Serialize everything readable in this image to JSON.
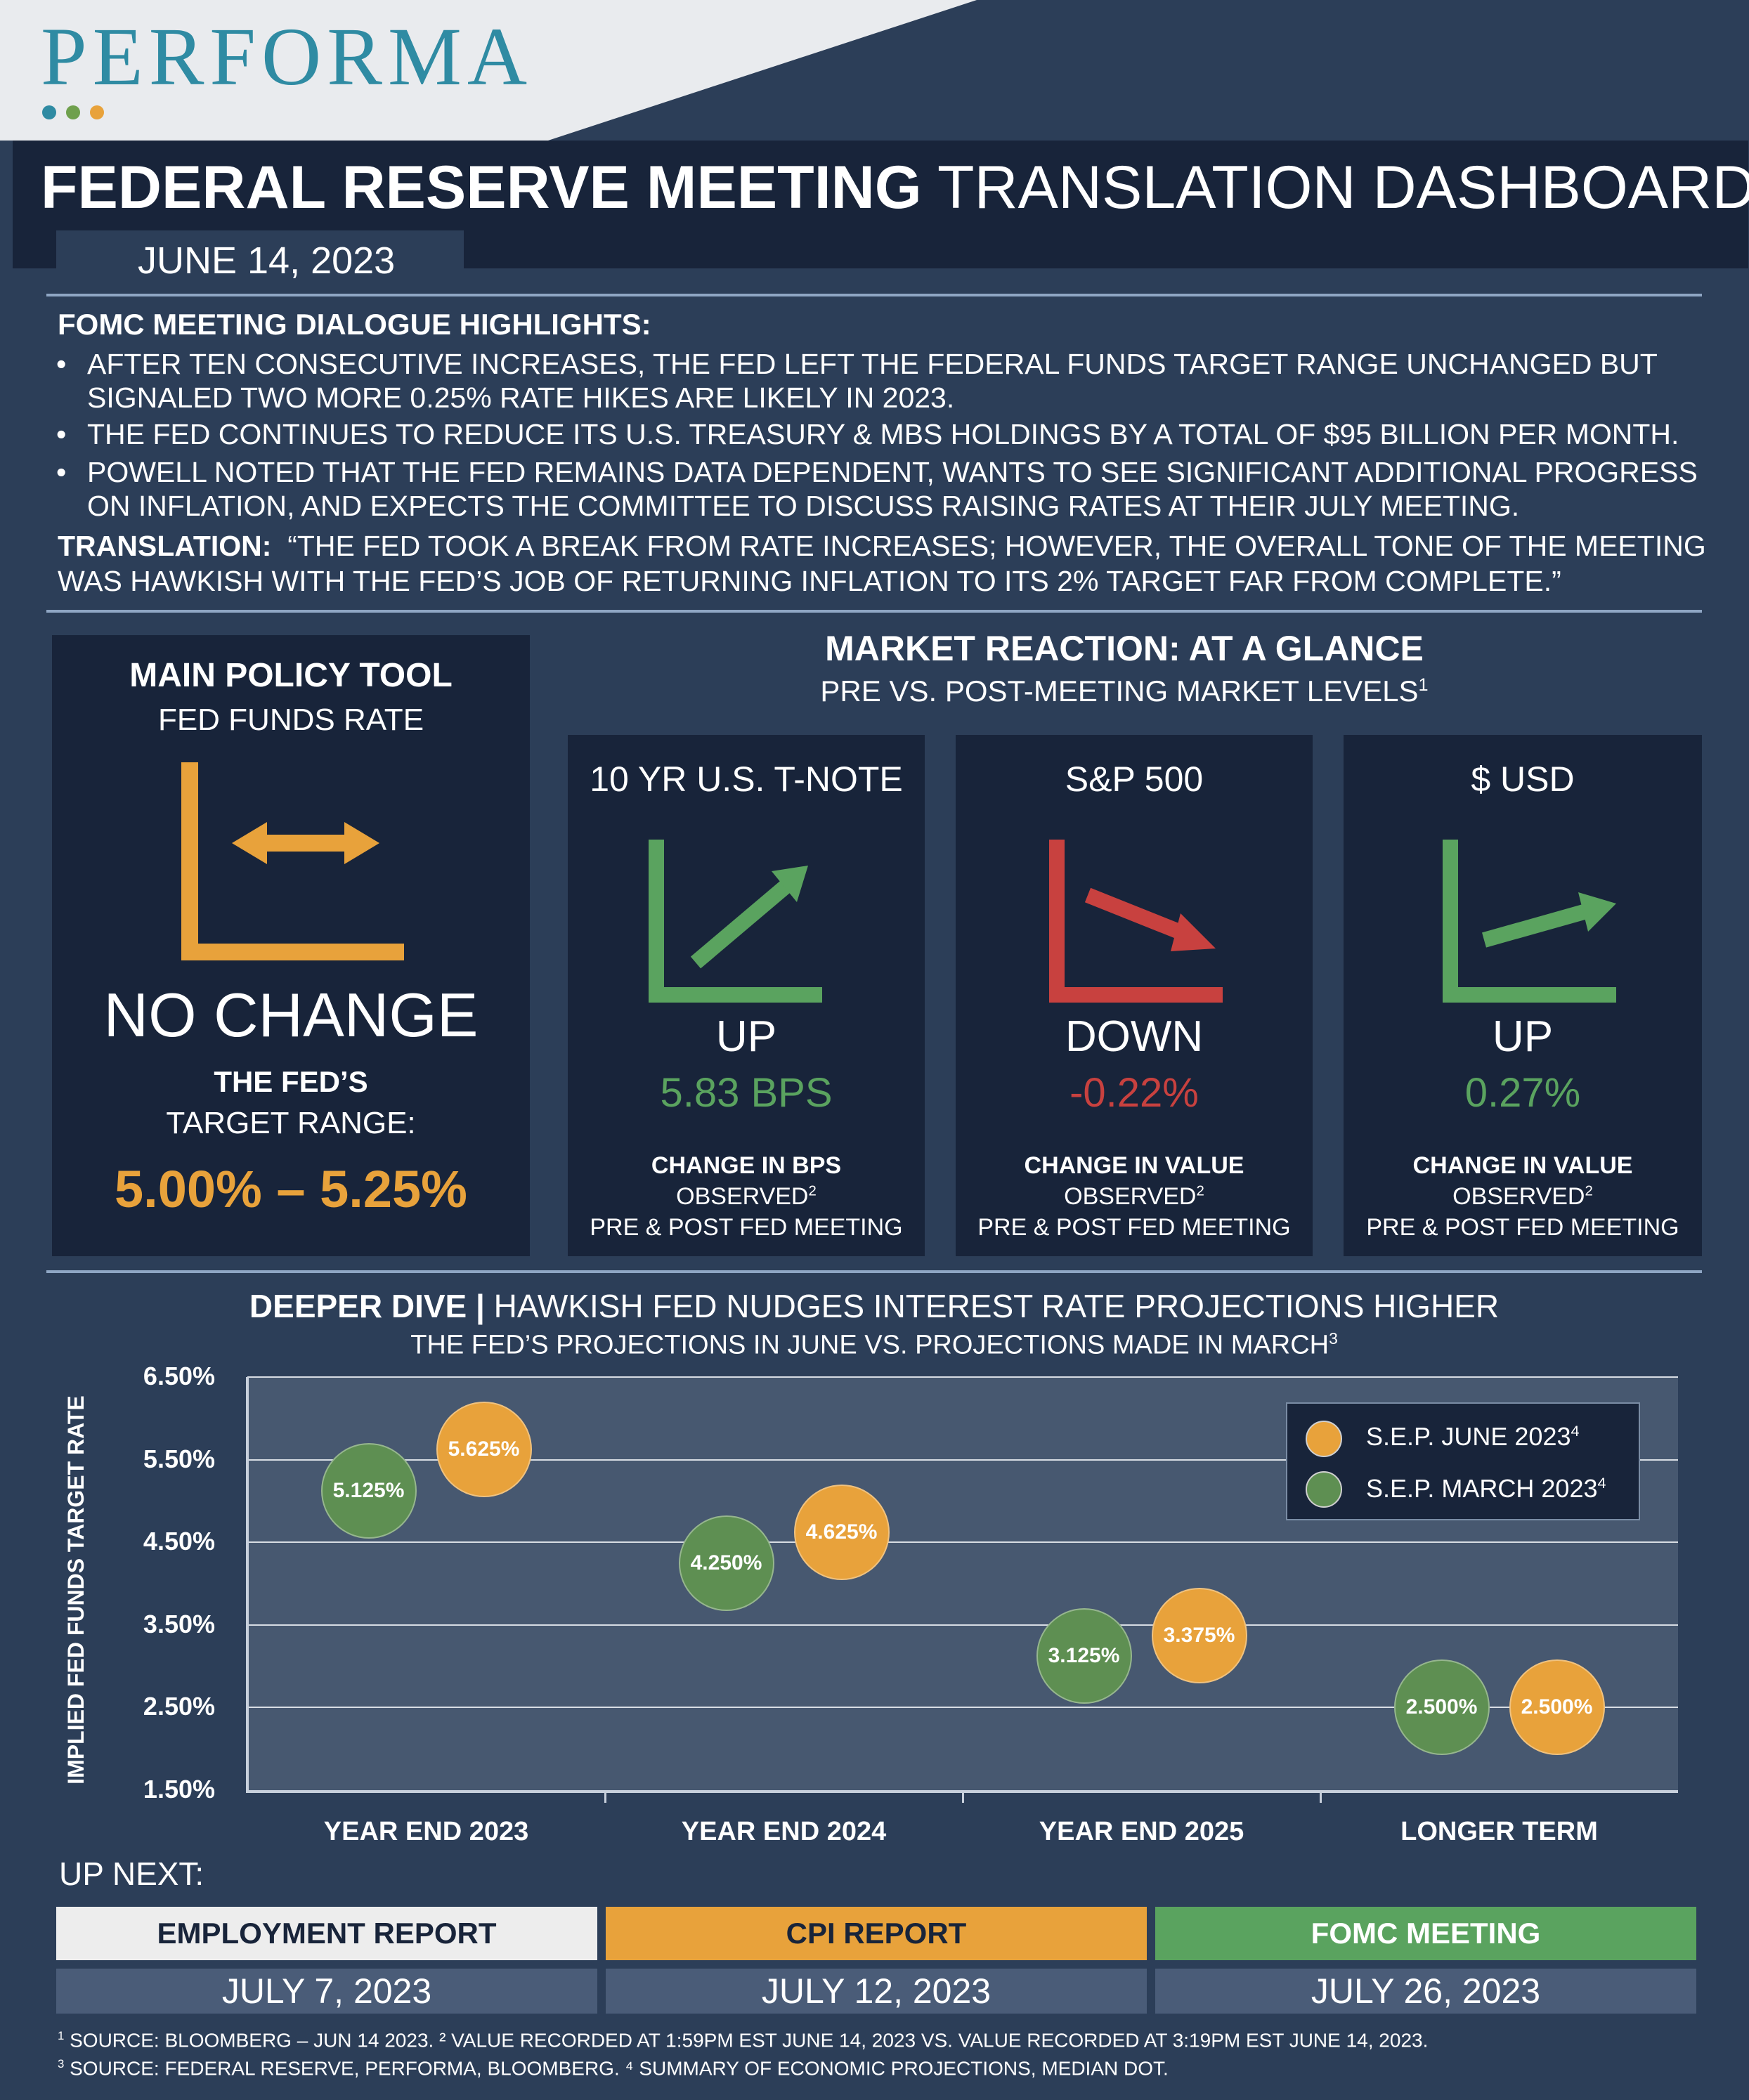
{
  "brand": {
    "logo": "PERFORMA",
    "dot_colors": [
      "#2f8ba3",
      "#6fa04d",
      "#e8a23b"
    ]
  },
  "header": {
    "title_bold": "FEDERAL RESERVE MEETING",
    "title_thin": "TRANSLATION DASHBOARD",
    "date": "JUNE 14, 2023"
  },
  "highlights": {
    "heading": "FOMC MEETING DIALOGUE HIGHLIGHTS:",
    "bullets": [
      "AFTER TEN CONSECUTIVE INCREASES, THE FED LEFT THE FEDERAL FUNDS TARGET RANGE UNCHANGED BUT SIGNALED TWO MORE 0.25% RATE HIKES ARE LIKELY IN 2023.",
      "THE FED CONTINUES TO REDUCE ITS U.S. TREASURY & MBS HOLDINGS BY A TOTAL OF $95 BILLION PER MONTH.",
      "POWELL NOTED THAT THE FED REMAINS DATA DEPENDENT, WANTS TO SEE SIGNIFICANT ADDITIONAL PROGRESS ON INFLATION, AND EXPECTS THE COMMITTEE TO DISCUSS RAISING RATES AT THEIR JULY MEETING."
    ],
    "translation_label": "TRANSLATION:",
    "translation_text": "“THE FED TOOK A BREAK FROM RATE INCREASES; HOWEVER, THE OVERALL TONE OF THE MEETING WAS HAWKISH WITH THE FED’S JOB OF RETURNING INFLATION TO ITS 2% TARGET FAR FROM COMPLETE.”"
  },
  "policy": {
    "title": "MAIN POLICY TOOL",
    "subtitle": "FED FUNDS RATE",
    "status": "NO CHANGE",
    "range_label_bold": "THE FED’S",
    "range_label": "TARGET RANGE:",
    "range_value": "5.00% – 5.25%",
    "accent": "#e8a23b"
  },
  "market": {
    "title": "MARKET REACTION: AT A GLANCE",
    "subtitle": "PRE VS. POST-MEETING MARKET LEVELS",
    "subtitle_sup": "1",
    "cards": [
      {
        "name": "10 YR U.S. T-NOTE",
        "direction": "UP",
        "value": "5.83 BPS",
        "metric": "CHANGE IN BPS",
        "obs": "OBSERVED",
        "obs_sup": "2",
        "window": "PRE & POST FED MEETING",
        "color": "#5aa35f",
        "icon": "trend-up-icon"
      },
      {
        "name": "S&P 500",
        "direction": "DOWN",
        "value": "-0.22%",
        "metric": "CHANGE IN VALUE",
        "obs": "OBSERVED",
        "obs_sup": "2",
        "window": "PRE & POST FED MEETING",
        "color": "#c8413f",
        "icon": "trend-down-icon"
      },
      {
        "name": "$ USD",
        "direction": "UP",
        "value": "0.27%",
        "metric": "CHANGE IN VALUE",
        "obs": "OBSERVED",
        "obs_sup": "2",
        "window": "PRE & POST FED MEETING",
        "color": "#5aa35f",
        "icon": "trend-slight-up-icon"
      }
    ]
  },
  "deeper": {
    "title_bold": "DEEPER DIVE |",
    "title_thin": "HAWKISH FED NUDGES INTEREST RATE PROJECTIONS HIGHER",
    "subtitle": "THE FED’S PROJECTIONS IN JUNE VS. PROJECTIONS MADE IN MARCH",
    "subtitle_sup": "3"
  },
  "chart_data": {
    "type": "scatter",
    "ylabel": "IMPLIED FED FUNDS TARGET RATE",
    "ylim": [
      1.5,
      6.5
    ],
    "yticks": [
      "6.50%",
      "5.50%",
      "4.50%",
      "3.50%",
      "2.50%",
      "1.50%"
    ],
    "ytick_values": [
      6.5,
      5.5,
      4.5,
      3.5,
      2.5,
      1.5
    ],
    "categories": [
      "YEAR END 2023",
      "YEAR END 2024",
      "YEAR END 2025",
      "LONGER TERM"
    ],
    "series": [
      {
        "name": "S.E.P. MARCH 2023",
        "name_sup": "4",
        "color": "#5e8f52",
        "values": [
          5.125,
          4.25,
          3.125,
          2.5
        ],
        "labels": [
          "5.125%",
          "4.250%",
          "3.125%",
          "2.500%"
        ]
      },
      {
        "name": "S.E.P. JUNE 2023",
        "name_sup": "4",
        "color": "#e8a23b",
        "values": [
          5.625,
          4.625,
          3.375,
          2.5
        ],
        "labels": [
          "5.625%",
          "4.625%",
          "3.375%",
          "2.500%"
        ]
      }
    ],
    "legend": "top-right",
    "grid": true
  },
  "up_next": {
    "label": "UP NEXT:",
    "items": [
      {
        "name": "EMPLOYMENT REPORT",
        "date": "JULY 7, 2023",
        "bg": "#ededed",
        "fg": "#18243a"
      },
      {
        "name": "CPI REPORT",
        "date": "JULY 12, 2023",
        "bg": "#e8a23b",
        "fg": "#18243a"
      },
      {
        "name": "FOMC MEETING",
        "date": "JULY 26, 2023",
        "bg": "#5aa35f",
        "fg": "#ffffff"
      }
    ]
  },
  "footnotes": {
    "line1": "SOURCE: BLOOMBERG – JUN 14 2023.  ² VALUE RECORDED AT 1:59PM EST JUNE 14, 2023 VS. VALUE RECORDED AT 3:19PM EST JUNE 14, 2023.",
    "line1_sup": "1",
    "line2": "SOURCE: FEDERAL RESERVE, PERFORMA, BLOOMBERG.  ⁴ SUMMARY OF ECONOMIC PROJECTIONS, MEDIAN DOT.",
    "line2_sup": "3"
  }
}
